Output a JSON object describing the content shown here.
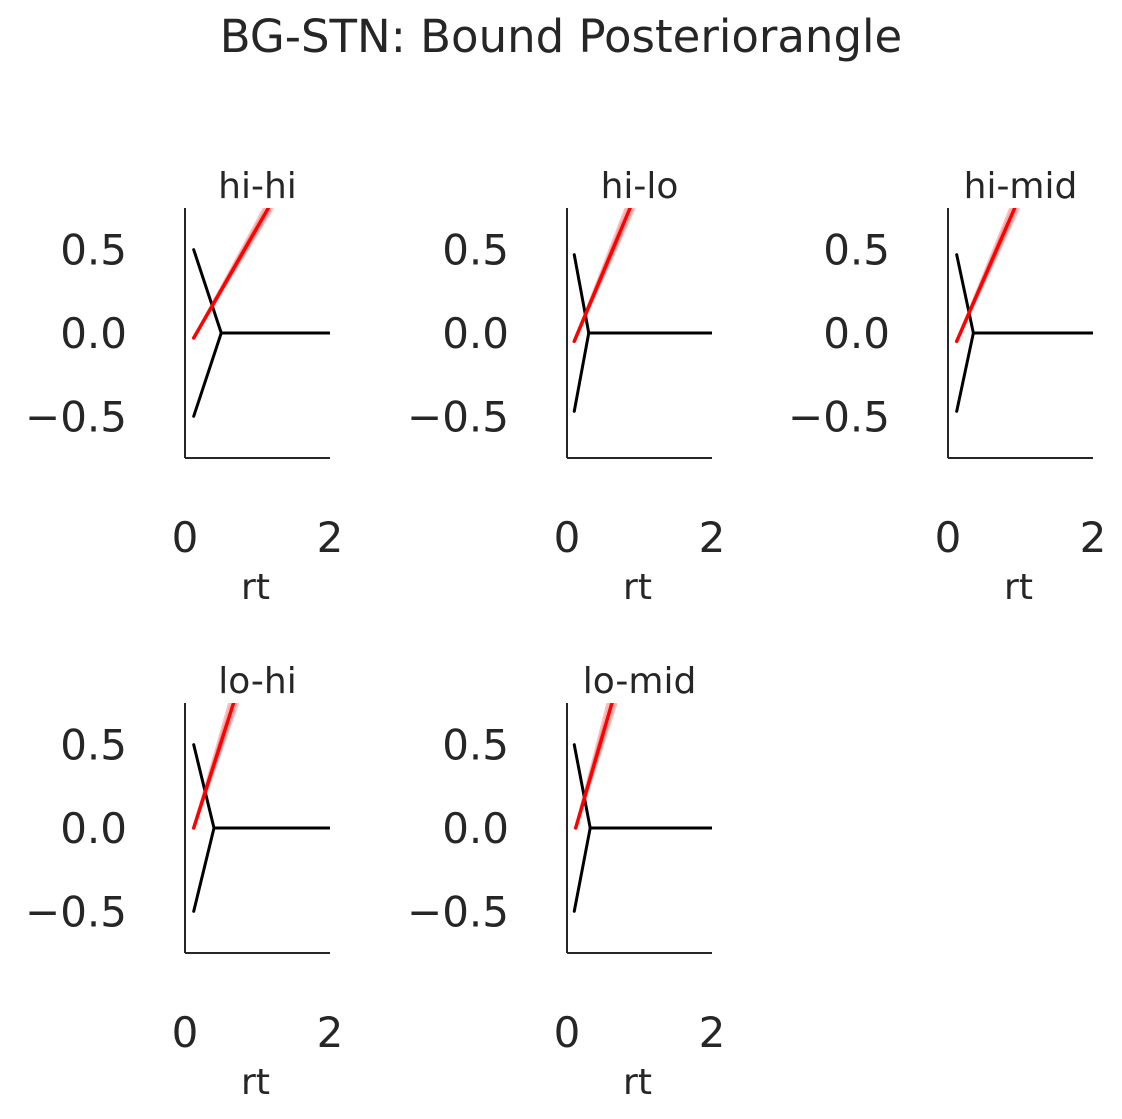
{
  "title": "BG-STN: Bound Posteriorangle",
  "colors": {
    "posterior": "#ff0000",
    "bound": "#000000",
    "axis": "#262626",
    "text": "#262626"
  },
  "chart_data": [
    {
      "type": "line",
      "title": "hi-hi",
      "xlabel": "rt",
      "ylabel": "",
      "xlim": [
        0,
        2
      ],
      "ylim": [
        -0.75,
        0.75
      ],
      "xticks": [
        "0",
        "2"
      ],
      "yticks": [
        "0.5",
        "0.0",
        "−0.5"
      ],
      "bound_node_x": 0.5,
      "series": [
        {
          "x": [
            0.12,
            0.5
          ],
          "y": [
            0.5,
            0.0
          ]
        },
        {
          "x": [
            0.12,
            0.5
          ],
          "y": [
            -0.5,
            0.0
          ]
        },
        {
          "x": [
            0.5,
            2.0
          ],
          "y": [
            0.0,
            0.0
          ]
        },
        {
          "x": [
            0.12,
            1.15
          ],
          "y": [
            -0.03,
            0.75
          ]
        }
      ]
    },
    {
      "type": "line",
      "title": "hi-lo",
      "xlabel": "rt",
      "ylabel": "",
      "xlim": [
        0,
        2
      ],
      "ylim": [
        -0.75,
        0.75
      ],
      "xticks": [
        "0",
        "2"
      ],
      "yticks": [
        "0.5",
        "0.0",
        "−0.5"
      ],
      "bound_node_x": 0.3,
      "series": [
        {
          "x": [
            0.1,
            0.3
          ],
          "y": [
            0.47,
            0.0
          ]
        },
        {
          "x": [
            0.1,
            0.3
          ],
          "y": [
            -0.47,
            0.0
          ]
        },
        {
          "x": [
            0.3,
            2.0
          ],
          "y": [
            0.0,
            0.0
          ]
        },
        {
          "x": [
            0.1,
            0.87
          ],
          "y": [
            -0.05,
            0.75
          ]
        }
      ]
    },
    {
      "type": "line",
      "title": "hi-mid",
      "xlabel": "rt",
      "ylabel": "",
      "xlim": [
        0,
        2
      ],
      "ylim": [
        -0.75,
        0.75
      ],
      "xticks": [
        "0",
        "2"
      ],
      "yticks": [
        "0.5",
        "0.0",
        "−0.5"
      ],
      "bound_node_x": 0.35,
      "series": [
        {
          "x": [
            0.12,
            0.35
          ],
          "y": [
            0.47,
            0.0
          ]
        },
        {
          "x": [
            0.12,
            0.35
          ],
          "y": [
            -0.47,
            0.0
          ]
        },
        {
          "x": [
            0.35,
            2.0
          ],
          "y": [
            0.0,
            0.0
          ]
        },
        {
          "x": [
            0.12,
            0.92
          ],
          "y": [
            -0.05,
            0.75
          ]
        }
      ]
    },
    {
      "type": "line",
      "title": "lo-hi",
      "xlabel": "rt",
      "ylabel": "",
      "xlim": [
        0,
        2
      ],
      "ylim": [
        -0.75,
        0.75
      ],
      "xticks": [
        "0",
        "2"
      ],
      "yticks": [
        "0.5",
        "0.0",
        "−0.5"
      ],
      "bound_node_x": 0.4,
      "series": [
        {
          "x": [
            0.12,
            0.4
          ],
          "y": [
            0.5,
            0.0
          ]
        },
        {
          "x": [
            0.12,
            0.4
          ],
          "y": [
            -0.5,
            0.0
          ]
        },
        {
          "x": [
            0.4,
            2.0
          ],
          "y": [
            0.0,
            0.0
          ]
        },
        {
          "x": [
            0.12,
            0.67
          ],
          "y": [
            0.0,
            0.75
          ]
        }
      ]
    },
    {
      "type": "line",
      "title": "lo-mid",
      "xlabel": "rt",
      "ylabel": "",
      "xlim": [
        0,
        2
      ],
      "ylim": [
        -0.75,
        0.75
      ],
      "xticks": [
        "0",
        "2"
      ],
      "yticks": [
        "0.5",
        "0.0",
        "−0.5"
      ],
      "bound_node_x": 0.32,
      "series": [
        {
          "x": [
            0.1,
            0.32
          ],
          "y": [
            0.5,
            0.0
          ]
        },
        {
          "x": [
            0.1,
            0.32
          ],
          "y": [
            -0.5,
            0.0
          ]
        },
        {
          "x": [
            0.32,
            2.0
          ],
          "y": [
            0.0,
            0.0
          ]
        },
        {
          "x": [
            0.12,
            0.62
          ],
          "y": [
            0.0,
            0.75
          ]
        }
      ]
    }
  ]
}
